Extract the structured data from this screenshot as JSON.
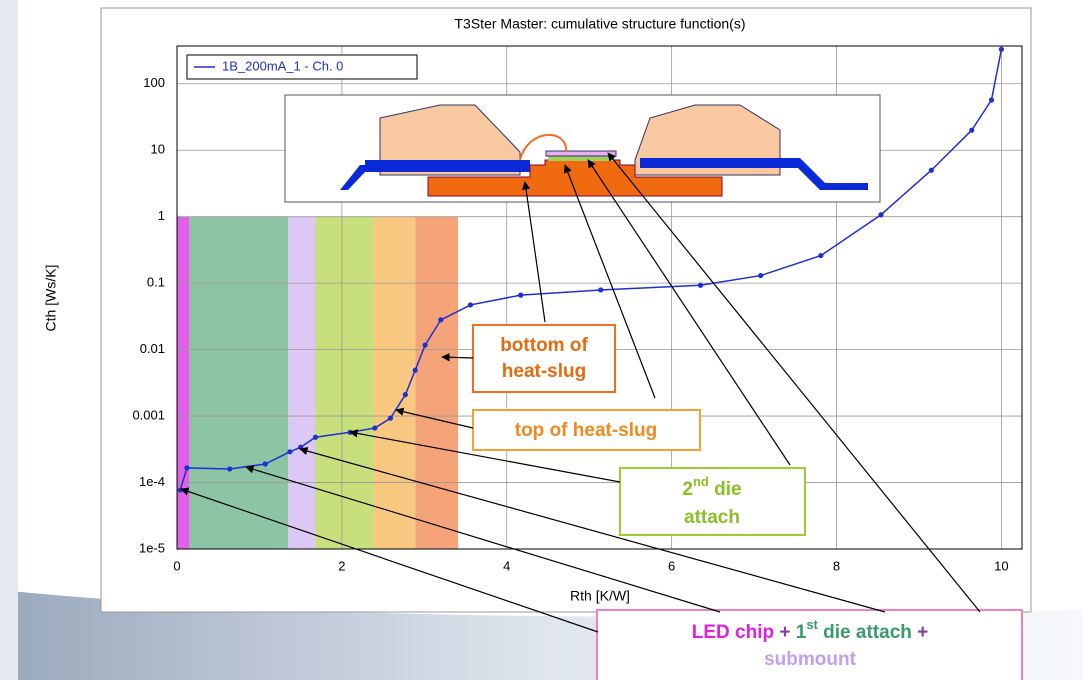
{
  "chart_data": {
    "type": "line",
    "title": "T3Ster Master: cumulative structure function(s)",
    "x_label": "Rth  [K/W]",
    "y_label": "Cth  [Ws/K]",
    "xlim": [
      0,
      10.25
    ],
    "xticks": [
      0,
      2,
      4,
      6,
      8,
      10
    ],
    "ylim": [
      1e-05,
      370
    ],
    "log_y": true,
    "yticks": [
      {
        "value": 1e-05,
        "label": "1e-5"
      },
      {
        "value": 0.0001,
        "label": "1e-4"
      },
      0.001,
      0.01,
      0.1,
      1,
      10,
      100
    ],
    "grid": true,
    "legend": "upper left",
    "series": [
      {
        "name": "1B_200mA_1 - Ch. 0",
        "color": "#1f2fd0",
        "x": [
          0.04,
          0.12,
          0.64,
          1.07,
          1.37,
          1.5,
          1.68,
          2.1,
          2.4,
          2.59,
          2.77,
          2.89,
          3.01,
          3.2,
          3.56,
          4.17,
          5.14,
          6.35,
          7.08,
          7.81,
          8.54,
          9.15,
          9.64,
          9.88,
          10.0
        ],
        "values": [
          7.7e-05,
          0.000166,
          0.00016,
          0.00019,
          0.00029,
          0.00034,
          0.00048,
          0.00057,
          0.00066,
          0.00093,
          0.0021,
          0.0049,
          0.0117,
          0.028,
          0.047,
          0.066,
          0.079,
          0.093,
          0.13,
          0.26,
          1.07,
          5.0,
          20,
          57,
          330
        ]
      }
    ],
    "bands": [
      {
        "from": 0,
        "to": 0.15,
        "top": 1,
        "color": "#e060e8"
      },
      {
        "from": 0.15,
        "to": 1.35,
        "top": 1,
        "color": "#8cc4a4"
      },
      {
        "from": 1.35,
        "to": 1.68,
        "top": 1,
        "color": "#dcc8f4"
      },
      {
        "from": 1.68,
        "to": 2.39,
        "top": 1,
        "color": "#c8e07c"
      },
      {
        "from": 2.39,
        "to": 2.89,
        "top": 1,
        "color": "#f8c880"
      },
      {
        "from": 2.89,
        "to": 3.41,
        "top": 1,
        "color": "#f4a478"
      }
    ]
  },
  "annotations": {
    "bottom_heat_slug": [
      "bottom of",
      "heat-slug"
    ],
    "top_heat_slug": "top of heat-slug",
    "die_attach_2": {
      "num": "2",
      "sup": "nd",
      "rest": " die",
      "line2": "attach"
    },
    "led": {
      "chip": "LED chip",
      "plus1": " + ",
      "num": "1",
      "sup": "st",
      "rest": " die attach",
      "plus2": " +",
      "line2": "submount"
    }
  }
}
